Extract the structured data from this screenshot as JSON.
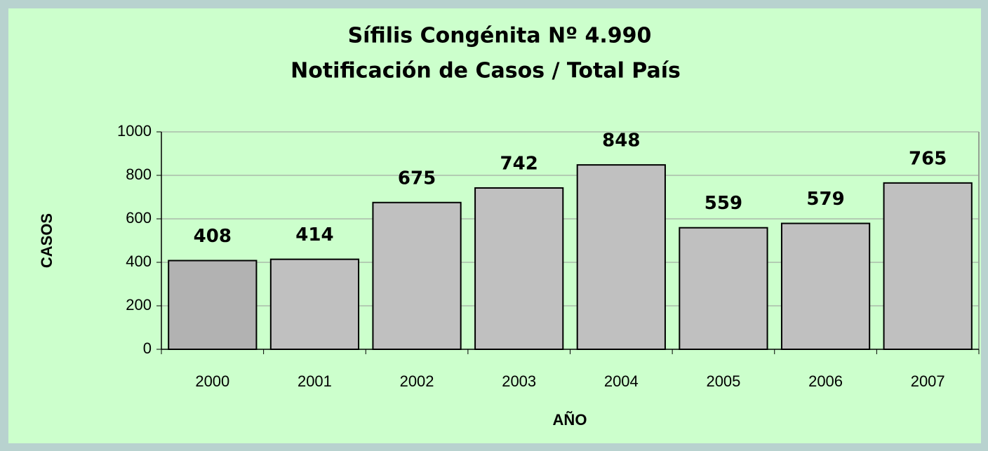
{
  "chart_data": {
    "type": "bar",
    "title": "Sífilis Congénita Nº 4.990",
    "subtitle": "Notificación de Casos / Total País",
    "x_label": "AÑO",
    "y_label": "CASOS",
    "categories": [
      "2000",
      "2001",
      "2002",
      "2003",
      "2004",
      "2005",
      "2006",
      "2007"
    ],
    "values": [
      408,
      414,
      675,
      742,
      848,
      559,
      579,
      765
    ],
    "colors": [
      "#b2b2b2",
      "#c0c0c0",
      "#c0c0c0",
      "#c0c0c0",
      "#c0c0c0",
      "#c0c0c0",
      "#c0c0c0",
      "#c0c0c0"
    ],
    "ylim": [
      0,
      1000
    ],
    "yticks": [
      0,
      200,
      400,
      600,
      800,
      1000
    ],
    "grid": true
  }
}
